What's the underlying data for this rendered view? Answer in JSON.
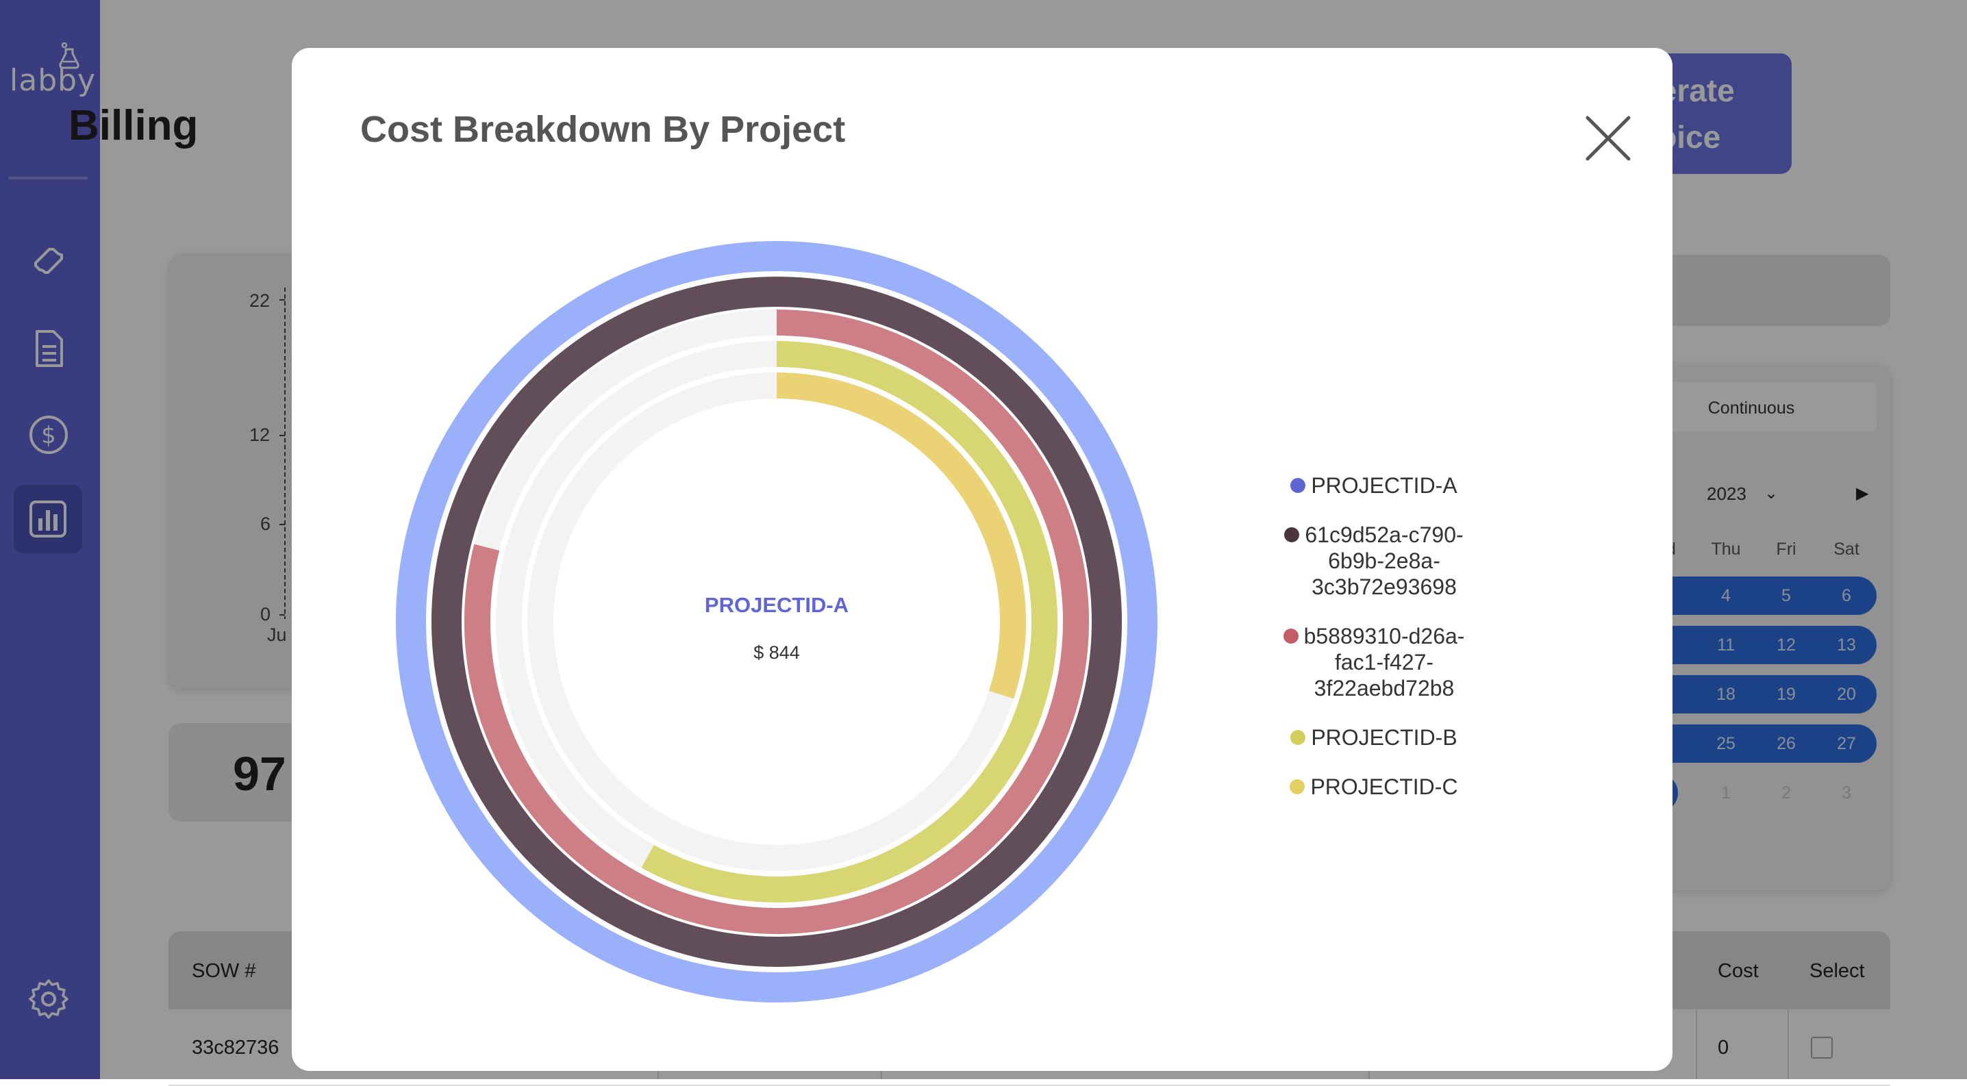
{
  "app": {
    "logo_text": "labby",
    "page_title": "Billing",
    "generate_invoice_label": "Generate\nInvoice"
  },
  "sidebar": {
    "items": [
      {
        "icon": "ticket-icon"
      },
      {
        "icon": "document-list-icon"
      },
      {
        "icon": "dollar-icon"
      },
      {
        "icon": "bar-chart-icon",
        "active": true
      },
      {
        "icon": "gear-icon"
      }
    ]
  },
  "background_chart": {
    "y_ticks": [
      "22",
      "12",
      "6",
      "0"
    ],
    "x_first_label": "Ju"
  },
  "stat": {
    "value": "97"
  },
  "calendar": {
    "mode_label": "Continuous",
    "year": "2023",
    "day_names": [
      "d",
      "Thu",
      "Fri",
      "Sat"
    ],
    "weeks": [
      [
        "4",
        "5",
        "6"
      ],
      [
        "11",
        "12",
        "13"
      ],
      [
        "18",
        "19",
        "20"
      ],
      [
        "25",
        "26",
        "27"
      ],
      [
        "1",
        "2",
        "3"
      ]
    ]
  },
  "table": {
    "headers": {
      "sow": "SOW #",
      "cost": "Cost",
      "select": "Select"
    },
    "rows": [
      {
        "sow": "33c82736",
        "cost": "0"
      }
    ]
  },
  "modal": {
    "title": "Cost Breakdown By Project",
    "center_label": "PROJECTID-A",
    "center_value": "$ 844"
  },
  "colors": {
    "accent": "#5f66d4",
    "track": "#f3f3f3"
  },
  "chart_data": {
    "type": "radial-bar",
    "series": [
      {
        "name": "PROJECTID-A",
        "color": "#9ab0fb",
        "legend_color": "#5f66d4",
        "fraction": 1.0
      },
      {
        "name": "61c9d52a-c790-6b9b-2e8a-3c3b72e93698",
        "color": "#624e58",
        "legend_color": "#4a353f",
        "fraction": 1.0
      },
      {
        "name": "b5889310-d26a-fac1-f427-3f22aebd72b8",
        "color": "#cd7f85",
        "legend_color": "#c45d68",
        "fraction": 0.79
      },
      {
        "name": "PROJECTID-B",
        "color": "#d8d672",
        "legend_color": "#d2cf5a",
        "fraction": 0.58
      },
      {
        "name": "PROJECTID-C",
        "color": "#ead275",
        "legend_color": "#e6cf62",
        "fraction": 0.3
      }
    ],
    "legend_labels": [
      "PROJECTID-A",
      "61c9d52a-c790-\n6b9b-2e8a-\n3c3b72e93698",
      "b5889310-d26a-\nfac1-f427-\n3f22aebd72b8",
      "PROJECTID-B",
      "PROJECTID-C"
    ],
    "legend_placement": "right"
  }
}
